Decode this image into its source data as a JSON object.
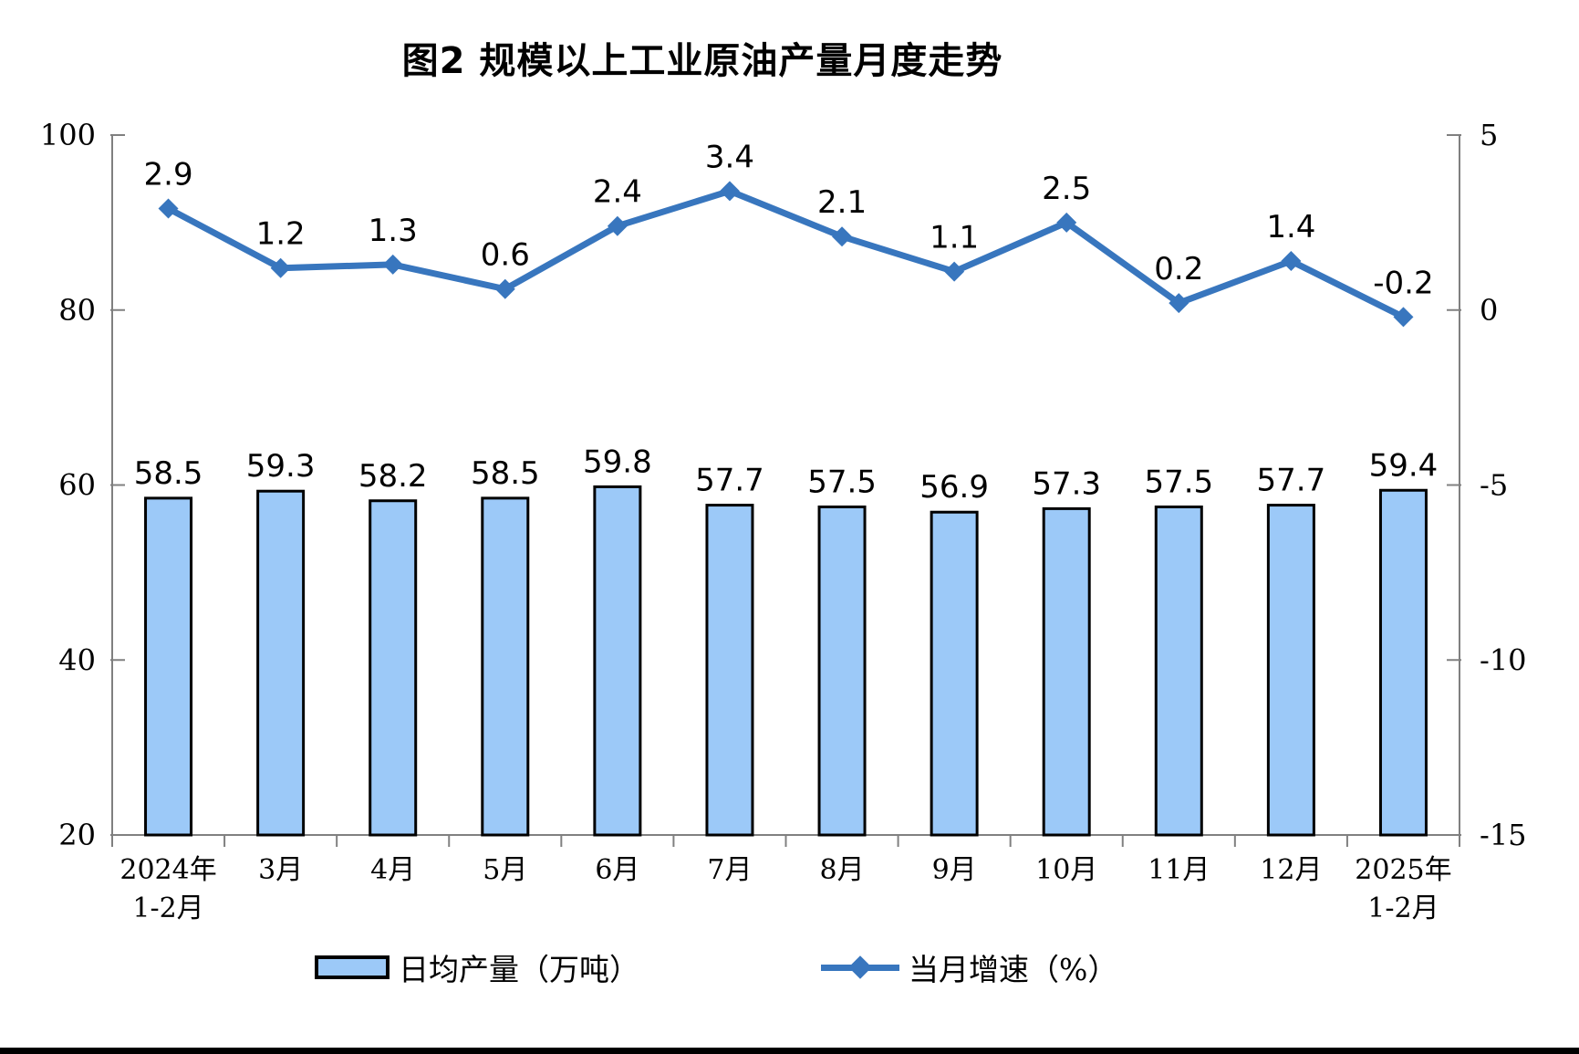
{
  "chart_data": {
    "type": "combo-bar-line",
    "title": "图2 规模以上工业原油产量月度走势",
    "categories": [
      [
        "2024年",
        "1-2月"
      ],
      [
        "3月"
      ],
      [
        "4月"
      ],
      [
        "5月"
      ],
      [
        "6月"
      ],
      [
        "7月"
      ],
      [
        "8月"
      ],
      [
        "9月"
      ],
      [
        "10月"
      ],
      [
        "11月"
      ],
      [
        "12月"
      ],
      [
        "2025年",
        "1-2月"
      ]
    ],
    "series": [
      {
        "name": "日均产量（万吨）",
        "type": "bar",
        "axis": "left",
        "values": [
          58.5,
          59.3,
          58.2,
          58.5,
          59.8,
          57.7,
          57.5,
          56.9,
          57.3,
          57.5,
          57.7,
          59.4
        ],
        "fill": "#9CC9F8",
        "border": "#000000"
      },
      {
        "name": "当月增速（%）",
        "type": "line",
        "axis": "right",
        "marker": "diamond",
        "values": [
          2.9,
          1.2,
          1.3,
          0.6,
          2.4,
          3.4,
          2.1,
          1.1,
          2.5,
          0.2,
          1.4,
          -0.2
        ],
        "color": "#3876BE"
      }
    ],
    "left_axis": {
      "min": 20,
      "max": 100,
      "ticks": [
        100,
        80,
        60,
        40,
        20
      ]
    },
    "right_axis": {
      "min": -15,
      "max": 5,
      "ticks": [
        5,
        0,
        -5,
        -10,
        -15
      ]
    },
    "axis_color": "#808080",
    "label_color": "#000000",
    "grid": false,
    "legend_position": "bottom",
    "legend": [
      {
        "swatch": "bar",
        "label": "日均产量（万吨）"
      },
      {
        "swatch": "line",
        "label": "当月增速（%）"
      }
    ]
  }
}
